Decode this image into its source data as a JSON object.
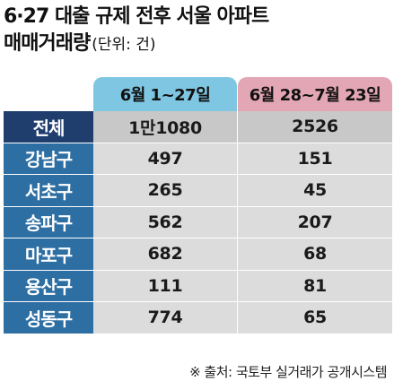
{
  "title": {
    "line1": "6·27 대출 규제 전후 서울 아파트",
    "line2": "매매거래량",
    "unit": "(단위: 건)"
  },
  "table": {
    "columns": [
      "6월 1~27일",
      "6월 28~7월 23일"
    ],
    "rows": [
      {
        "label": "전체",
        "a": "1만1080",
        "b": "2526"
      },
      {
        "label": "강남구",
        "a": "497",
        "b": "151"
      },
      {
        "label": "서초구",
        "a": "265",
        "b": "45"
      },
      {
        "label": "송파구",
        "a": "562",
        "b": "207"
      },
      {
        "label": "마포구",
        "a": "682",
        "b": "68"
      },
      {
        "label": "용산구",
        "a": "111",
        "b": "81"
      },
      {
        "label": "성동구",
        "a": "774",
        "b": "65"
      }
    ]
  },
  "source": "※ 출처: 국토부 실거래가 공개시스템",
  "colors": {
    "header_a": "#7fc6e2",
    "header_b": "#e3a6b5",
    "row_label": "#2d6ea3",
    "row_label_total": "#1f3e6e",
    "cell": "#dcdcdc"
  }
}
